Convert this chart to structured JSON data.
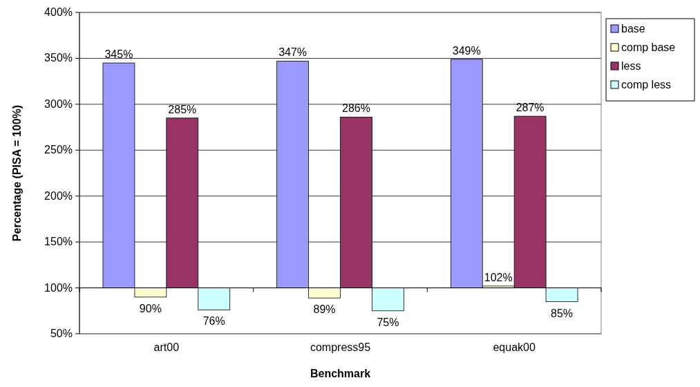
{
  "chart_data": {
    "type": "bar",
    "xlabel": "Benchmark",
    "ylabel": "Percentage (PISA = 100%)",
    "categories": [
      "art00",
      "compress95",
      "equak00"
    ],
    "series": [
      {
        "name": "base",
        "color": "#9999ff",
        "base": [
          100,
          100,
          100
        ],
        "values": [
          245,
          247,
          249
        ],
        "value_labels": [
          "345%",
          "347%",
          "349%"
        ]
      },
      {
        "name": "comp base",
        "color": "#ffffcc",
        "base": [
          100,
          100,
          100
        ],
        "values": [
          -10,
          -11,
          2
        ],
        "value_labels": [
          "90%",
          "89%",
          "102%"
        ]
      },
      {
        "name": "less",
        "color": "#993366",
        "base": [
          100,
          100,
          100
        ],
        "values": [
          185,
          186,
          187
        ],
        "value_labels": [
          "285%",
          "286%",
          "287%"
        ]
      },
      {
        "name": "comp less",
        "color": "#ccffff",
        "base": [
          100,
          100,
          100
        ],
        "values": [
          -24,
          -25,
          -15
        ],
        "value_labels": [
          "76%",
          "75%",
          "85%"
        ]
      }
    ],
    "ylim": [
      50,
      400
    ],
    "yticks": [
      {
        "value": 50,
        "label": "50%"
      },
      {
        "value": 100,
        "label": "100%"
      },
      {
        "value": 150,
        "label": "150%"
      },
      {
        "value": 200,
        "label": "200%"
      },
      {
        "value": 250,
        "label": "250%"
      },
      {
        "value": 300,
        "label": "300%"
      },
      {
        "value": 350,
        "label": "350%"
      },
      {
        "value": 400,
        "label": "400%"
      }
    ],
    "grid": "y",
    "legend": "right"
  }
}
